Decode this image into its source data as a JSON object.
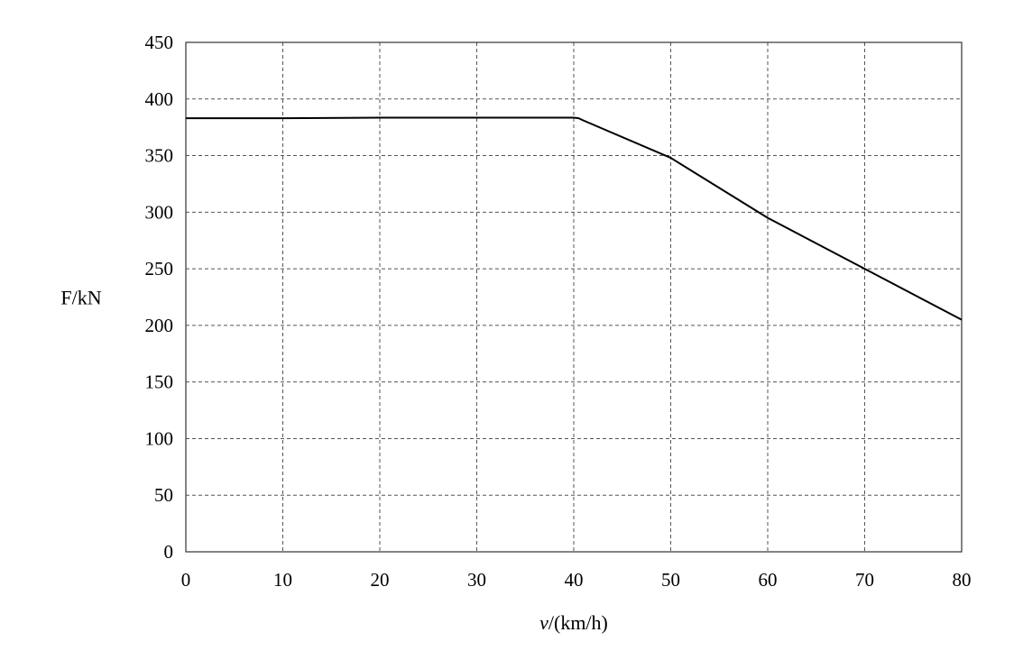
{
  "chart_data": {
    "type": "line",
    "title": "",
    "xlabel": "v/(km/h)",
    "xlabel_var": "v",
    "xlabel_unit": "/(km/h)",
    "ylabel": "F/kN",
    "xlim": [
      0,
      80
    ],
    "ylim": [
      0,
      450
    ],
    "xticks": [
      0,
      10,
      20,
      30,
      40,
      50,
      60,
      70,
      80
    ],
    "yticks": [
      0,
      50,
      100,
      150,
      200,
      250,
      300,
      350,
      400,
      450
    ],
    "grid": true,
    "legend": "none",
    "series": [
      {
        "color": "#000000",
        "x": [
          0,
          10,
          20,
          30,
          40,
          40.5,
          41,
          50,
          60,
          70,
          80
        ],
        "y": [
          383,
          383,
          383.5,
          383.5,
          383.5,
          383,
          381,
          348,
          295,
          250,
          205
        ]
      }
    ]
  }
}
